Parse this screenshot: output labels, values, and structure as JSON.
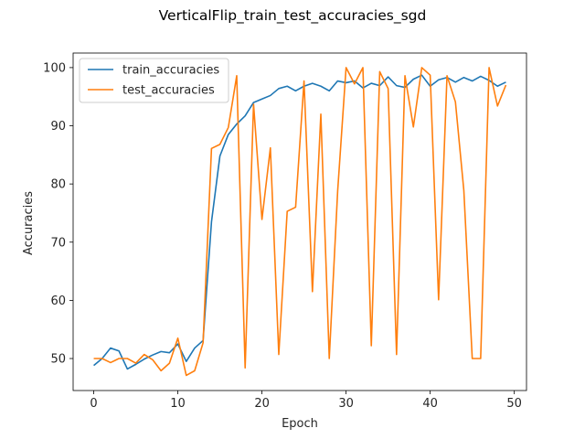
{
  "chart_data": {
    "type": "line",
    "title": "VerticalFlip_train_test_accuracies_sgd",
    "xlabel": "Epoch",
    "ylabel": "Accuracies",
    "xlim": [
      -2.45,
      51.45
    ],
    "ylim": [
      44.5,
      102.5
    ],
    "xticks": [
      0,
      10,
      20,
      30,
      40,
      50
    ],
    "yticks": [
      50,
      60,
      70,
      80,
      90,
      100
    ],
    "grid": false,
    "legend_position": "top-left",
    "x": [
      0,
      1,
      2,
      3,
      4,
      5,
      6,
      7,
      8,
      9,
      10,
      11,
      12,
      13,
      14,
      15,
      16,
      17,
      18,
      19,
      20,
      21,
      22,
      23,
      24,
      25,
      26,
      27,
      28,
      29,
      30,
      31,
      32,
      33,
      34,
      35,
      36,
      37,
      38,
      39,
      40,
      41,
      42,
      43,
      44,
      45,
      46,
      47,
      48,
      49
    ],
    "series": [
      {
        "name": "train_accuracies",
        "color": "#1f77b4",
        "values": [
          48.8,
          50.0,
          51.8,
          51.3,
          48.2,
          49.0,
          49.9,
          50.6,
          51.2,
          51.0,
          52.5,
          49.5,
          51.8,
          53.1,
          73.5,
          84.8,
          88.5,
          90.3,
          91.7,
          94.0,
          94.6,
          95.2,
          96.4,
          96.8,
          96.0,
          96.8,
          97.3,
          96.8,
          96.0,
          97.7,
          97.4,
          97.7,
          96.5,
          97.3,
          96.9,
          98.4,
          96.9,
          96.6,
          98.0,
          98.7,
          96.8,
          97.9,
          98.3,
          97.5,
          98.3,
          97.7,
          98.5,
          97.8,
          96.8,
          97.5
        ]
      },
      {
        "name": "test_accuracies",
        "color": "#ff7f0e",
        "values": [
          50.0,
          50.0,
          49.3,
          50.0,
          50.0,
          49.2,
          50.7,
          49.8,
          47.9,
          49.2,
          53.5,
          47.1,
          47.9,
          52.7,
          86.1,
          86.8,
          89.7,
          98.6,
          48.4,
          93.7,
          73.9,
          86.2,
          50.7,
          75.3,
          76.0,
          97.7,
          61.5,
          92.0,
          50.0,
          78.8,
          100.0,
          97.2,
          100.0,
          52.2,
          99.3,
          96.4,
          50.7,
          98.6,
          89.8,
          100.0,
          98.7,
          60.1,
          98.6,
          94.1,
          78.9,
          50.0,
          50.0,
          100.0,
          93.4,
          97.0
        ]
      }
    ]
  }
}
